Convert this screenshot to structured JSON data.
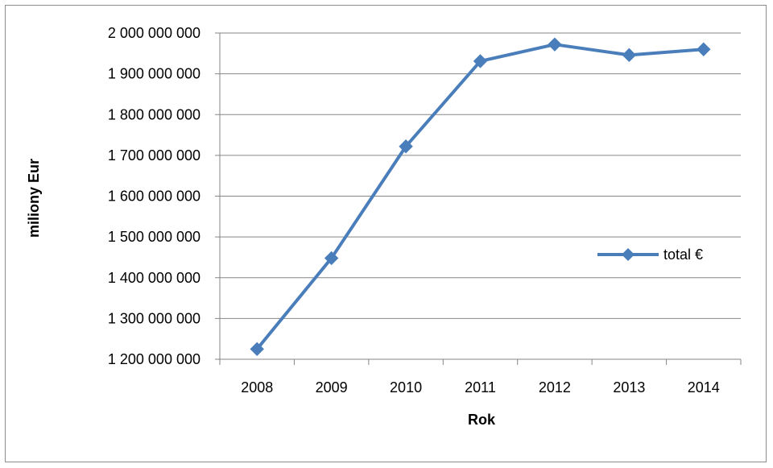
{
  "chart_data": {
    "type": "line",
    "xlabel": "Rok",
    "ylabel": "miliony Eur",
    "categories": [
      "2008",
      "2009",
      "2010",
      "2011",
      "2012",
      "2013",
      "2014"
    ],
    "series": [
      {
        "name": "total €",
        "values": [
          1225000000,
          1448000000,
          1722000000,
          1931000000,
          1972000000,
          1946000000,
          1960000000
        ],
        "color": "#4a7ebb"
      }
    ],
    "ylim": [
      1200000000,
      2000000000
    ],
    "yticks": [
      "1 200 000 000",
      "1 300 000 000",
      "1 400 000 000",
      "1 500 000 000",
      "1 600 000 000",
      "1 700 000 000",
      "1 800 000 000",
      "1 900 000 000",
      "2 000 000 000"
    ],
    "grid": true,
    "legend_position": "right"
  }
}
